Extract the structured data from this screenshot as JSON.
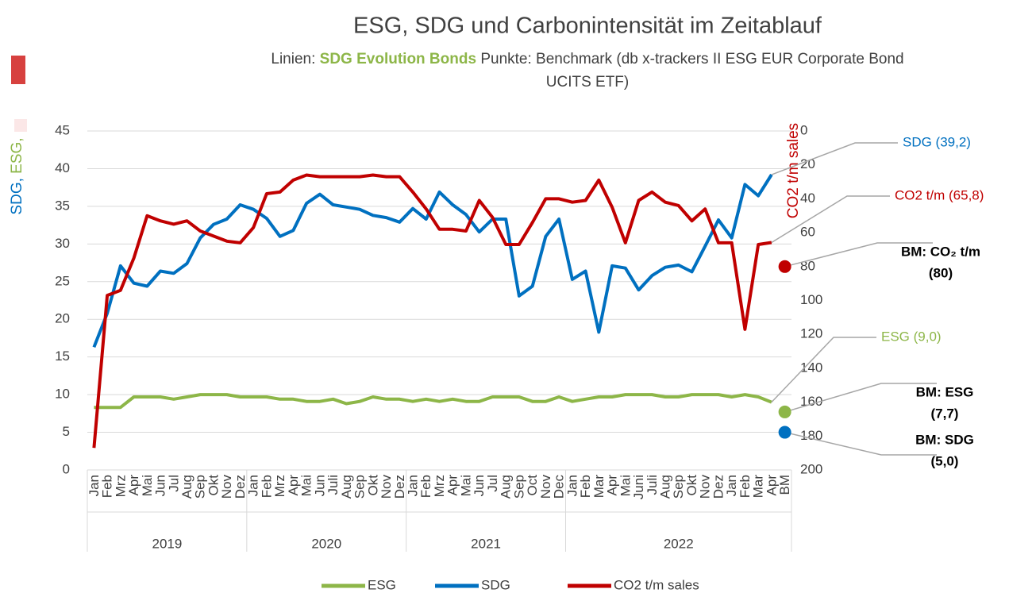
{
  "chart_data": {
    "type": "line",
    "title": "ESG, SDG und Carbonintensität im Zeitablauf",
    "subtitle": {
      "prefix": "Linien: ",
      "highlight": "SDG Evolution Bonds",
      "rest_line1": " Punkte: Benchmark (db x-trackers II ESG EUR Corporate Bond",
      "rest_line2": "UCITS ETF)"
    },
    "y_label_parts": [
      {
        "text": "SDG",
        "color": "#0070c0"
      },
      {
        "text": ", ",
        "color": "#0070c0"
      },
      {
        "text": "ESG",
        "color": "#8db648"
      },
      {
        "text": ", ",
        "color": "#8db648"
      }
    ],
    "y2_label": "CO2 t/m sales",
    "categories": [
      "Jan",
      "Feb",
      "Mrz",
      "Apr",
      "Mai",
      "Jun",
      "Jul",
      "Aug",
      "Sep",
      "Okt",
      "Nov",
      "Dez",
      "Jan",
      "Feb",
      "Mrz",
      "Apr",
      "Mai",
      "Jun",
      "Juli",
      "Aug",
      "Sep",
      "Okt",
      "Nov",
      "Dez",
      "Jan",
      "Feb",
      "Mrz",
      "Apr",
      "Mai",
      "Jun",
      "Jul",
      "Aug",
      "Sep",
      "Oct",
      "Nov",
      "Dec",
      "Jan",
      "Feb",
      "Mar",
      "Apr",
      "Mai",
      "Juni",
      "Juli",
      "Aug",
      "Sep",
      "Okt",
      "Nov",
      "Dez",
      "Jan",
      "Feb",
      "Mar",
      "Apr",
      "BM"
    ],
    "year_groups": [
      {
        "label": "2019",
        "months": 12
      },
      {
        "label": "2020",
        "months": 12
      },
      {
        "label": "2021",
        "months": 12
      },
      {
        "label": "2022",
        "months": 17
      }
    ],
    "ylim": [
      0,
      45
    ],
    "yticks": [
      0,
      5,
      10,
      15,
      20,
      25,
      30,
      35,
      40,
      45
    ],
    "y2lim": [
      0,
      200
    ],
    "y2_inverted": true,
    "y2ticks": [
      0,
      20,
      40,
      60,
      80,
      100,
      120,
      140,
      160,
      180,
      200
    ],
    "series": [
      {
        "name": "ESG",
        "color": "#8db648",
        "values": [
          8.3,
          8.3,
          8.3,
          9.7,
          9.7,
          9.7,
          9.4,
          9.7,
          10.0,
          10.0,
          10.0,
          9.7,
          9.7,
          9.7,
          9.4,
          9.4,
          9.1,
          9.1,
          9.4,
          8.8,
          9.1,
          9.7,
          9.4,
          9.4,
          9.1,
          9.4,
          9.1,
          9.4,
          9.1,
          9.1,
          9.7,
          9.7,
          9.7,
          9.1,
          9.1,
          9.7,
          9.1,
          9.4,
          9.7,
          9.7,
          10.0,
          10.0,
          10.0,
          9.7,
          9.7,
          10.0,
          10.0,
          10.0,
          9.7,
          10.0,
          9.7,
          9.0,
          null
        ],
        "end_label": "ESG (9,0)",
        "bm": 7.7,
        "bm_label": [
          "BM: ESG",
          "(7,7)"
        ]
      },
      {
        "name": "SDG",
        "color": "#0070c0",
        "values": [
          16.3,
          20.8,
          27.1,
          24.8,
          24.4,
          26.4,
          26.1,
          27.4,
          30.8,
          32.6,
          33.3,
          35.2,
          34.6,
          33.4,
          31.0,
          31.8,
          35.4,
          36.6,
          35.2,
          34.9,
          34.6,
          33.8,
          33.5,
          32.9,
          34.7,
          33.3,
          36.9,
          35.2,
          33.9,
          31.6,
          33.3,
          33.3,
          23.1,
          24.4,
          31.0,
          33.3,
          25.3,
          26.4,
          18.3,
          27.1,
          26.8,
          23.9,
          25.8,
          26.9,
          27.2,
          26.3,
          29.7,
          33.2,
          30.8,
          37.9,
          36.4,
          39.2,
          null
        ],
        "end_label": "SDG (39,2)",
        "bm": 5.0,
        "bm_label": [
          "BM: SDG",
          "(5,0)"
        ]
      },
      {
        "name": "CO2 t/m sales",
        "color": "#c00000",
        "axis": "y2",
        "values": [
          187,
          97,
          94,
          75,
          50,
          53,
          55,
          53,
          59,
          62,
          65,
          66,
          57,
          37,
          36,
          29,
          26,
          27,
          27,
          27,
          27,
          26,
          27,
          27,
          36,
          46,
          58,
          58,
          59,
          41,
          51,
          67,
          67,
          54,
          40,
          40,
          42,
          41,
          29,
          45,
          66,
          41,
          36,
          42,
          44,
          53,
          46,
          66,
          66,
          117,
          67,
          65.8,
          null
        ],
        "end_label": "CO2 t/m (65,8)",
        "bm": 80,
        "bm_label": [
          "BM: CO₂ t/m",
          "(80)"
        ]
      }
    ],
    "legend": "bottom"
  }
}
